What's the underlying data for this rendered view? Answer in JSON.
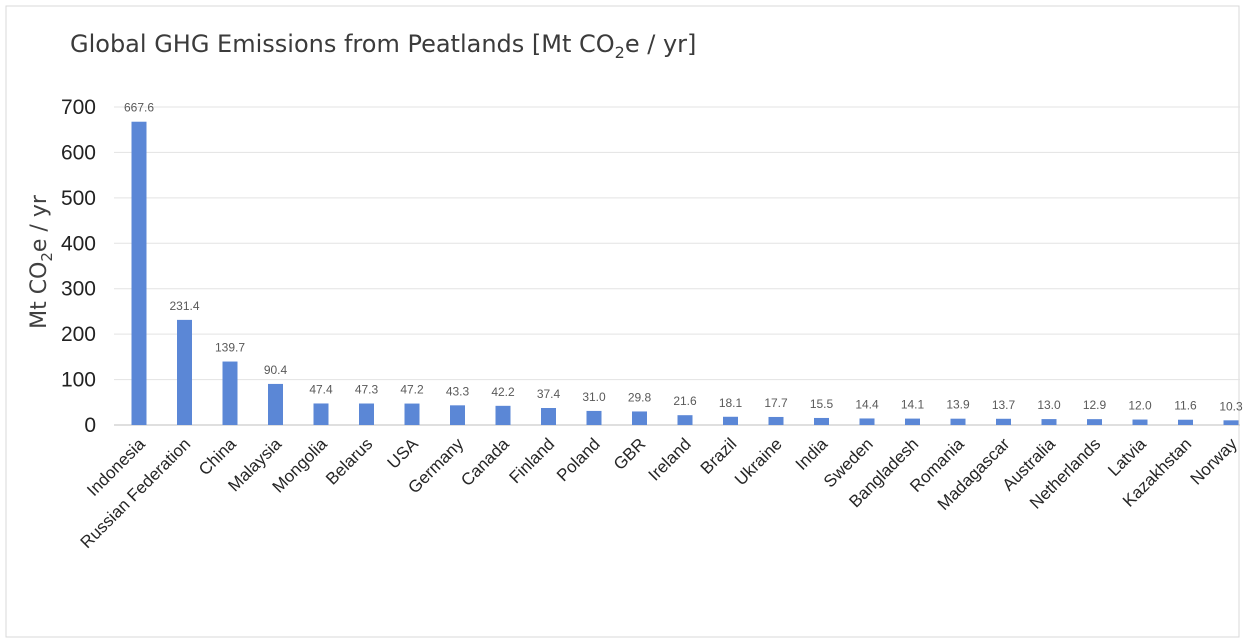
{
  "chart_data": {
    "type": "bar",
    "title": "Global GHG Emissions from Peatlands [Mt CO",
    "title_subscript": "2",
    "title_suffix": "e / yr]",
    "ylabel": "Mt CO",
    "ylabel_subscript": "2",
    "ylabel_suffix": "e / yr",
    "xlabel": "",
    "ylim": [
      0,
      700
    ],
    "yticks": [
      0,
      100,
      200,
      300,
      400,
      500,
      600,
      700
    ],
    "grid": true,
    "legend": "none",
    "bar_color": "#5b87d6",
    "categories": [
      "Indonesia",
      "Russian Federation",
      "China",
      "Malaysia",
      "Mongolia",
      "Belarus",
      "USA",
      "Germany",
      "Canada",
      "Finland",
      "Poland",
      "GBR",
      "Ireland",
      "Brazil",
      "Ukraine",
      "India",
      "Sweden",
      "Bangladesh",
      "Romania",
      "Madagascar",
      "Australia",
      "Netherlands",
      "Latvia",
      "Kazakhstan",
      "Norway"
    ],
    "values": [
      667.6,
      231.4,
      139.7,
      90.4,
      47.4,
      47.3,
      47.2,
      43.3,
      42.2,
      37.4,
      31.0,
      29.8,
      21.6,
      18.1,
      17.7,
      15.5,
      14.4,
      14.1,
      13.9,
      13.7,
      13.0,
      12.9,
      12.0,
      11.6,
      10.3
    ],
    "data_labels": [
      "667.6",
      "231.4",
      "139.7",
      "90.4",
      "47.4",
      "47.3",
      "47.2",
      "43.3",
      "42.2",
      "37.4",
      "31.0",
      "29.8",
      "21.6",
      "18.1",
      "17.7",
      "15.5",
      "14.4",
      "14.1",
      "13.9",
      "13.7",
      "13.0",
      "12.9",
      "12.0",
      "11.6",
      "10.3"
    ]
  }
}
